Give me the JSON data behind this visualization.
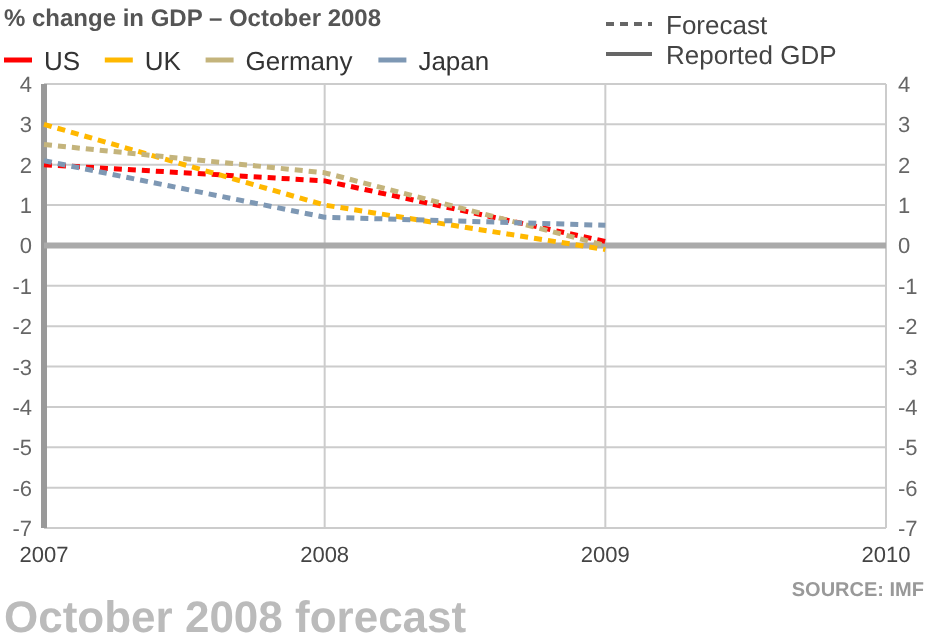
{
  "chart_data": {
    "type": "line",
    "title": "% change in GDP – October 2008",
    "subtitle": "October 2008 forecast",
    "annotations": [
      "Forecast",
      "Reported GDP",
      "SOURCE: IMF"
    ],
    "x": [
      2007,
      2008,
      2009
    ],
    "series": [
      {
        "name": "US",
        "color": "#ff0000",
        "values": [
          2.0,
          1.6,
          0.1
        ]
      },
      {
        "name": "UK",
        "color": "#ffb800",
        "values": [
          3.0,
          1.0,
          -0.1
        ]
      },
      {
        "name": "Germany",
        "color": "#c4b47c",
        "values": [
          2.5,
          1.8,
          0.0
        ]
      },
      {
        "name": "Japan",
        "color": "#7e98b4",
        "values": [
          2.1,
          0.7,
          0.5
        ]
      }
    ],
    "xlim": [
      2007,
      2010
    ],
    "xticks": [
      2007,
      2008,
      2009,
      2010
    ],
    "ylim": [
      -7,
      4
    ],
    "yticks": [
      -7,
      -6,
      -5,
      -4,
      -3,
      -2,
      -1,
      0,
      1,
      2,
      3,
      4
    ],
    "y2lim": [
      -7,
      4
    ],
    "y2ticks": [
      -7,
      -6,
      -5,
      -4,
      -3,
      -2,
      -1,
      0,
      1,
      2,
      3,
      4
    ],
    "grid": true,
    "legend": "top",
    "line_style": "dashed",
    "marker": "none"
  }
}
